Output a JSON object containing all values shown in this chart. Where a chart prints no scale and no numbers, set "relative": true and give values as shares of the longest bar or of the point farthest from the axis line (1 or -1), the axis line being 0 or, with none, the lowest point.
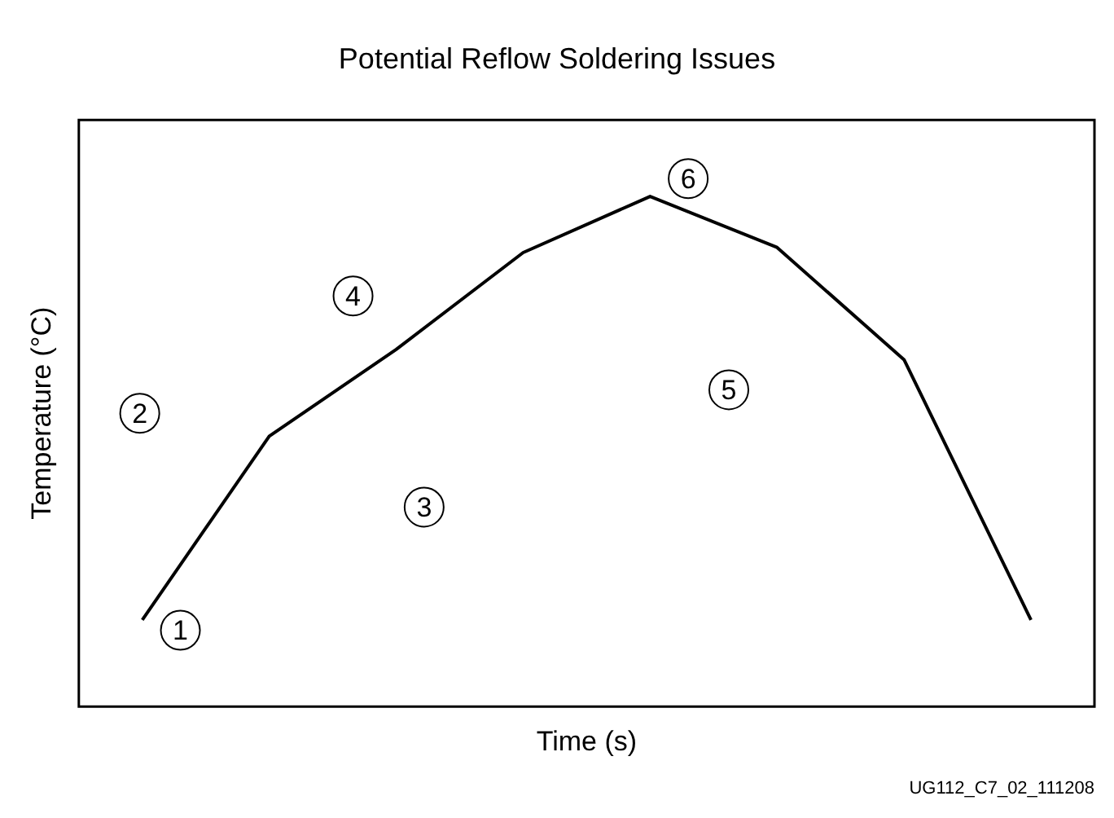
{
  "chart_data": {
    "type": "line",
    "title": "Potential Reflow Soldering Issues",
    "xlabel": "Time (s)",
    "ylabel": "Temperature (°C)",
    "relative": true,
    "categories": [
      null,
      null,
      null,
      null,
      null,
      null,
      null,
      null
    ],
    "series": [
      {
        "color": "#000000",
        "values": [
          0.17,
          0.53,
          0.7,
          0.89,
          1,
          0.9,
          0.68,
          0.17
        ]
      }
    ],
    "marker": "none",
    "grid": false,
    "legend": false,
    "annotations": [
      "1",
      "2",
      "3",
      "4",
      "5",
      "6",
      "UG112_C7_02_111208"
    ]
  }
}
